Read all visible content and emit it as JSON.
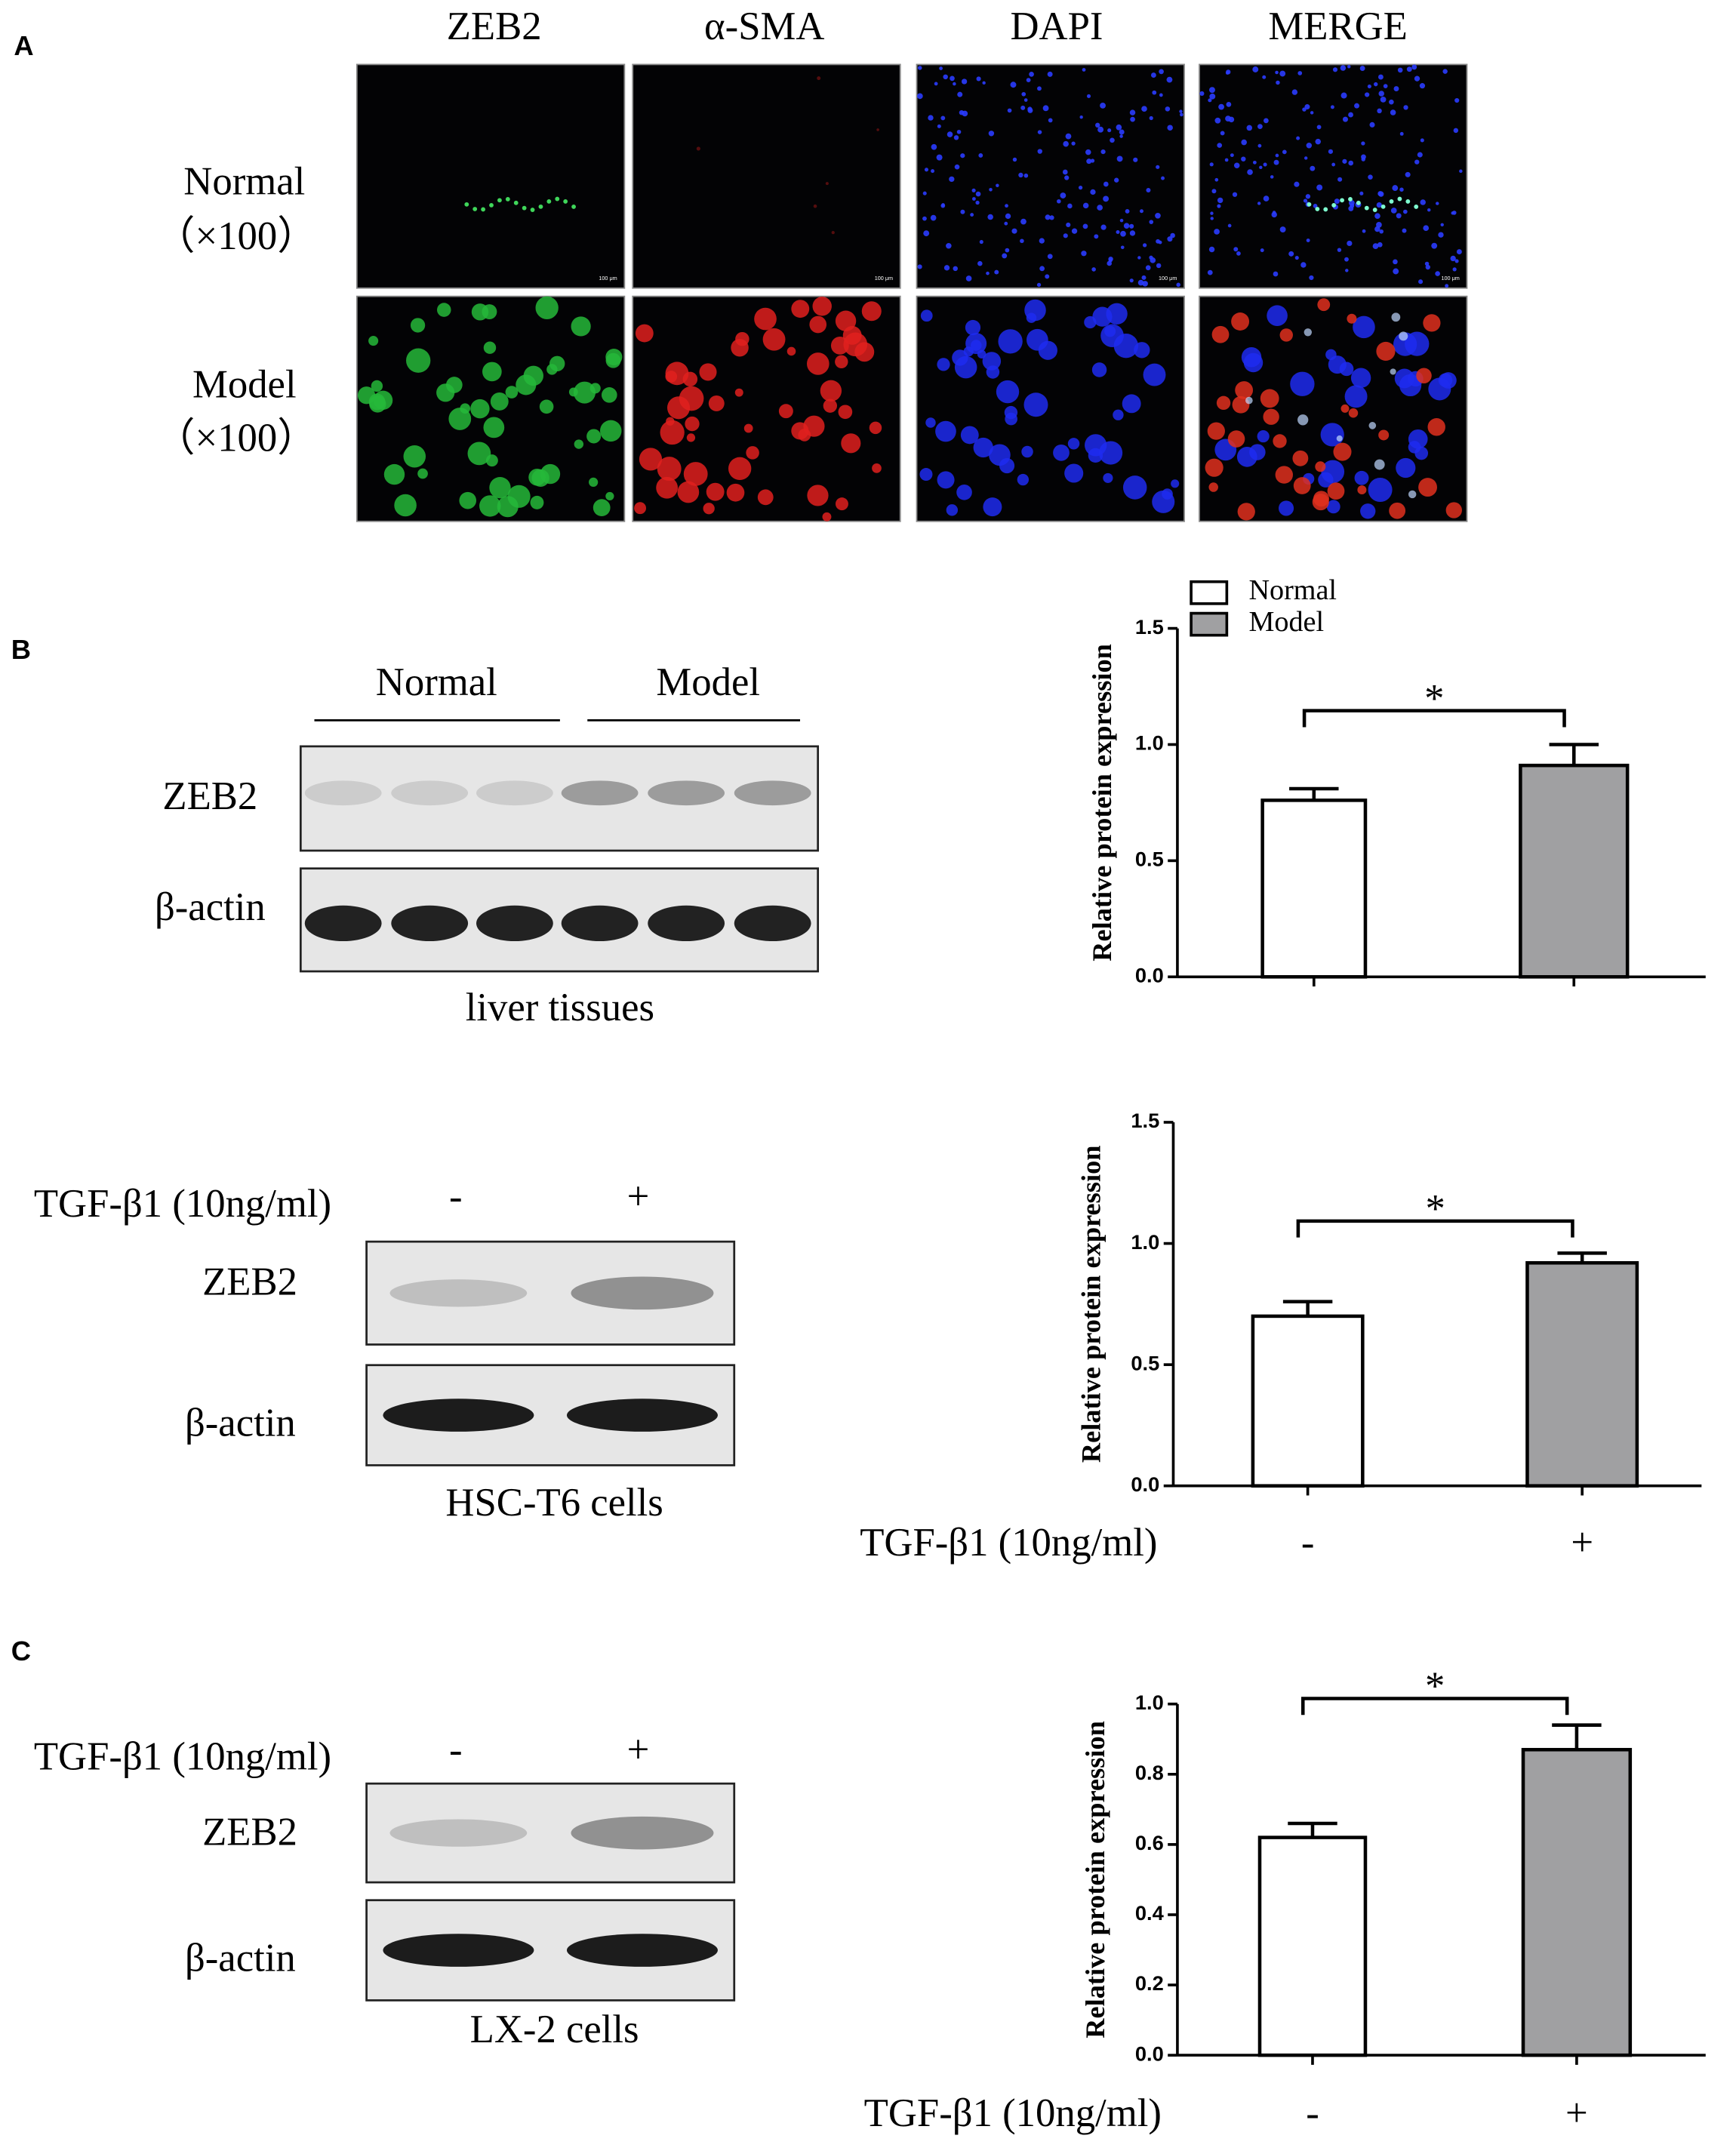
{
  "panel_labels": [
    "A",
    "B",
    "C"
  ],
  "panel_a": {
    "columns": [
      "ZEB2",
      "α-SMA",
      "DAPI",
      "MERGE"
    ],
    "rows": [
      {
        "name": "Normal",
        "magnification": "（×100）"
      },
      {
        "name": "Model",
        "magnification": "（×100）"
      }
    ],
    "scale_bar": "100 μm"
  },
  "blots": [
    {
      "groups": [
        "Normal",
        "Model"
      ],
      "proteins": [
        "ZEB2",
        "β-actin"
      ],
      "caption": "liver tissues"
    },
    {
      "treatment": "TGF-β1 (10ng/ml)",
      "conditions": [
        "-",
        "+"
      ],
      "proteins": [
        "ZEB2",
        "β-actin"
      ],
      "caption": "HSC-T6 cells"
    },
    {
      "treatment": "TGF-β1 (10ng/ml)",
      "conditions": [
        "-",
        "+"
      ],
      "proteins": [
        "ZEB2",
        "β-actin"
      ],
      "caption": "LX-2 cells"
    }
  ],
  "chart_data": [
    {
      "type": "bar",
      "y_label": "Relative protein expression",
      "series": [
        {
          "name": "Normal",
          "color": "#ffffff",
          "values": [
            0.76
          ],
          "error": [
            0.05
          ]
        },
        {
          "name": "Model",
          "color": "#a0a0a2",
          "values": [
            0.91
          ],
          "error": [
            0.09
          ]
        }
      ],
      "ylim": [
        0,
        1.5
      ],
      "yticks": [
        {
          "value": 0,
          "label": "0.0"
        },
        0.5,
        {
          "value": 1,
          "label": "1.0"
        },
        1.5
      ],
      "annotation": "*",
      "legend": "top-left"
    },
    {
      "type": "bar",
      "y_label": "Relative protein expression",
      "x_label": "TGF-β1 (10ng/ml)",
      "categories": [
        "-",
        "+"
      ],
      "values": [
        0.7,
        0.92
      ],
      "error": [
        0.06,
        0.04
      ],
      "colors": [
        "#ffffff",
        "#a0a0a2"
      ],
      "ylim": [
        0,
        1.5
      ],
      "yticks": [
        {
          "value": 0,
          "label": "0.0"
        },
        0.5,
        {
          "value": 1,
          "label": "1.0"
        },
        1.5
      ],
      "annotation": "*"
    },
    {
      "type": "bar",
      "y_label": "Relative protein expression",
      "x_label": "TGF-β1 (10ng/ml)",
      "categories": [
        "-",
        "+"
      ],
      "values": [
        0.62,
        0.87
      ],
      "error": [
        0.04,
        0.07
      ],
      "colors": [
        "#ffffff",
        "#a0a0a2"
      ],
      "ylim": [
        0,
        1
      ],
      "yticks": [
        {
          "value": 0,
          "label": "0.0"
        },
        0.2,
        0.4,
        0.6,
        0.8,
        {
          "value": 1,
          "label": "1.0"
        }
      ],
      "annotation": "*"
    }
  ]
}
